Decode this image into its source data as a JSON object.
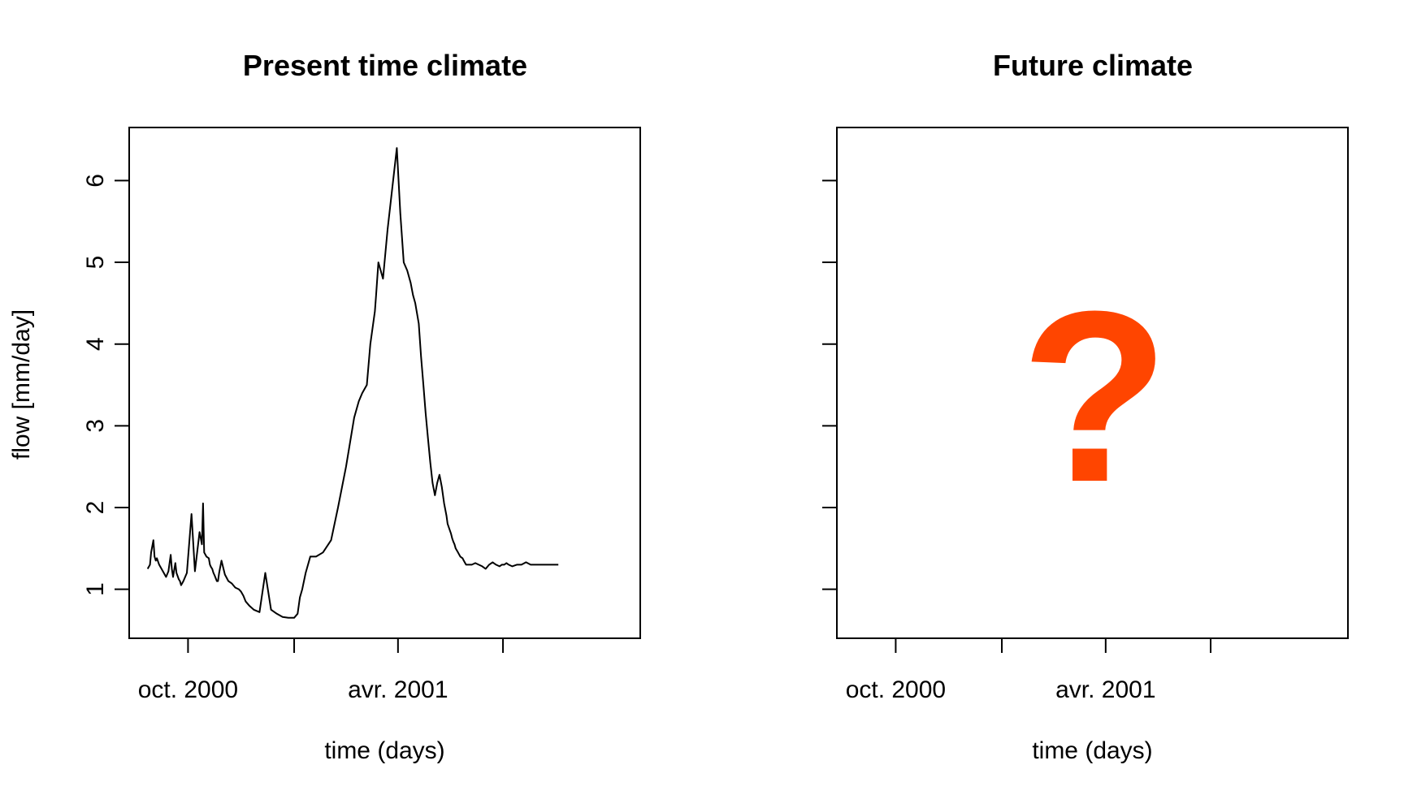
{
  "chart_data": [
    {
      "type": "line",
      "title": "Present time climate",
      "xlabel": "time (days)",
      "ylabel": "flow [mm/day]",
      "ylim": [
        0.4,
        6.65
      ],
      "yticks": [
        1,
        2,
        3,
        4,
        5,
        6
      ],
      "xlim": [
        "2000-08-11",
        "2001-10-28"
      ],
      "xticks": [
        "2000-10-01",
        "2001-01-01",
        "2001-04-01",
        "2001-07-01"
      ],
      "xtick_labels": [
        "oct. 2000",
        "",
        "avr. 2001",
        ""
      ],
      "grid": false,
      "series": [
        {
          "color": "#000000",
          "x": [
            "2000-08-27",
            "2000-08-29",
            "2000-08-30",
            "2000-09-01",
            "2000-09-02",
            "2000-09-03",
            "2000-09-04",
            "2000-09-06",
            "2000-09-08",
            "2000-09-10",
            "2000-09-12",
            "2000-09-14",
            "2000-09-16",
            "2000-09-17",
            "2000-09-18",
            "2000-09-20",
            "2000-09-21",
            "2000-09-23",
            "2000-09-24",
            "2000-09-25",
            "2000-09-27",
            "2000-09-30",
            "2000-10-04",
            "2000-10-07",
            "2000-10-11",
            "2000-10-13",
            "2000-10-14",
            "2000-10-15",
            "2000-10-17",
            "2000-10-19",
            "2000-10-20",
            "2000-10-21",
            "2000-10-22",
            "2000-10-23",
            "2000-10-24",
            "2000-10-26",
            "2000-10-27",
            "2000-10-28",
            "2000-10-30",
            "2000-11-02",
            "2000-11-05",
            "2000-11-08",
            "2000-11-11",
            "2000-11-14",
            "2000-11-16",
            "2000-11-18",
            "2000-11-20",
            "2000-11-23",
            "2000-11-27",
            "2000-12-02",
            "2000-12-07",
            "2000-12-12",
            "2000-12-17",
            "2000-12-22",
            "2000-12-27",
            "2001-01-01",
            "2001-01-04",
            "2001-01-05",
            "2001-01-06",
            "2001-01-08",
            "2001-01-11",
            "2001-01-15",
            "2001-01-20",
            "2001-01-26",
            "2001-02-02",
            "2001-02-08",
            "2001-02-15",
            "2001-02-22",
            "2001-02-26",
            "2001-03-01",
            "2001-03-05",
            "2001-03-08",
            "2001-03-12",
            "2001-03-13",
            "2001-03-15",
            "2001-03-19",
            "2001-03-23",
            "2001-03-27",
            "2001-03-31",
            "2001-04-03",
            "2001-04-06",
            "2001-04-09",
            "2001-04-12",
            "2001-04-14",
            "2001-04-16",
            "2001-04-19",
            "2001-04-21",
            "2001-04-23",
            "2001-04-25",
            "2001-04-27",
            "2001-04-29",
            "2001-05-01",
            "2001-05-03",
            "2001-05-05",
            "2001-05-07",
            "2001-05-09",
            "2001-05-11",
            "2001-05-13",
            "2001-05-14",
            "2001-05-16",
            "2001-05-17",
            "2001-05-18",
            "2001-05-19",
            "2001-05-20",
            "2001-05-21",
            "2001-05-23",
            "2001-05-25",
            "2001-05-27",
            "2001-05-28",
            "2001-05-30",
            "2001-06-01",
            "2001-06-04",
            "2001-06-07",
            "2001-06-10",
            "2001-06-13",
            "2001-06-16",
            "2001-06-19",
            "2001-06-22",
            "2001-06-25",
            "2001-06-28",
            "2001-06-30",
            "2001-07-02",
            "2001-07-04",
            "2001-07-06",
            "2001-07-09",
            "2001-07-13",
            "2001-07-17",
            "2001-07-21",
            "2001-07-25",
            "2001-07-29",
            "2001-08-02",
            "2001-08-06",
            "2001-08-08",
            "2001-08-10",
            "2001-08-12",
            "2001-08-14",
            "2001-08-16",
            "2001-08-18"
          ],
          "values": [
            1.25,
            1.3,
            1.45,
            1.6,
            1.4,
            1.35,
            1.38,
            1.3,
            1.25,
            1.2,
            1.15,
            1.22,
            1.42,
            1.25,
            1.15,
            1.32,
            1.2,
            1.12,
            1.1,
            1.05,
            1.1,
            1.2,
            1.92,
            1.22,
            1.7,
            1.55,
            2.05,
            1.45,
            1.4,
            1.38,
            1.3,
            1.27,
            1.25,
            1.2,
            1.17,
            1.1,
            1.1,
            1.2,
            1.35,
            1.18,
            1.1,
            1.07,
            1.02,
            1.0,
            0.97,
            0.92,
            0.85,
            0.8,
            0.75,
            0.72,
            1.2,
            0.75,
            0.7,
            0.66,
            0.65,
            0.65,
            0.7,
            0.8,
            0.9,
            1.0,
            1.2,
            1.4,
            1.4,
            1.45,
            1.6,
            2.0,
            2.5,
            3.1,
            3.3,
            3.4,
            3.5,
            4.0,
            4.4,
            4.6,
            5.0,
            4.8,
            5.4,
            5.9,
            6.4,
            5.6,
            5.0,
            4.9,
            4.75,
            4.6,
            4.5,
            4.25,
            3.85,
            3.5,
            3.15,
            2.85,
            2.55,
            2.3,
            2.15,
            2.3,
            2.4,
            2.25,
            2.05,
            1.9,
            1.8,
            1.72,
            1.68,
            1.62,
            1.58,
            1.55,
            1.5,
            1.45,
            1.4,
            1.38,
            1.35,
            1.3,
            1.3,
            1.3,
            1.32,
            1.3,
            1.28,
            1.25,
            1.3,
            1.33,
            1.3,
            1.28,
            1.3,
            1.3,
            1.32,
            1.3,
            1.28,
            1.3,
            1.3,
            1.33,
            1.3,
            1.3,
            1.3,
            1.3,
            1.3,
            1.3,
            1.3,
            1.3,
            1.3,
            1.3
          ]
        }
      ]
    },
    {
      "type": "line",
      "title": "Future climate",
      "xlabel": "time (days)",
      "ylabel": "",
      "ylim": [
        0.4,
        6.65
      ],
      "yticks": [
        1,
        2,
        3,
        4,
        5,
        6
      ],
      "ytick_labels_shown": false,
      "xlim": [
        "2000-08-11",
        "2001-10-28"
      ],
      "xticks": [
        "2000-10-01",
        "2001-01-01",
        "2001-04-01",
        "2001-07-01"
      ],
      "xtick_labels": [
        "oct. 2000",
        "",
        "avr. 2001",
        ""
      ],
      "grid": false,
      "series": [],
      "annotation": {
        "text": "?",
        "color": "#ff4500"
      }
    }
  ]
}
